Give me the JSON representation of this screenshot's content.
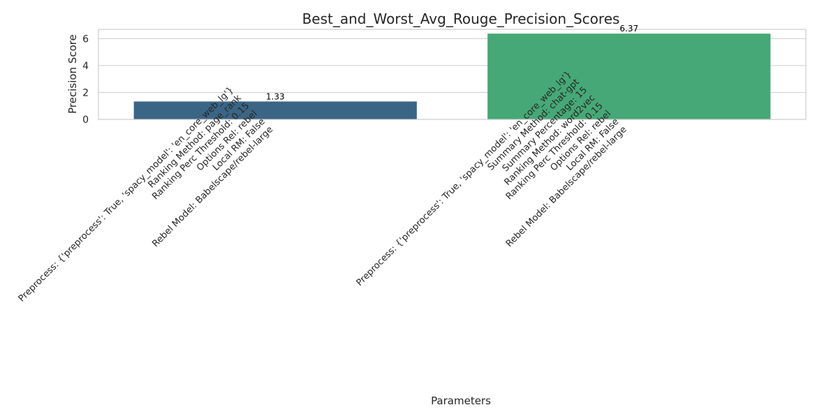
{
  "chart_data": {
    "type": "bar",
    "title": "Best_and_Worst_Avg_Rouge_Precision_Scores",
    "xlabel": "Parameters",
    "ylabel": "Precision Score",
    "ylim": [
      0,
      6.69
    ],
    "yticks": [
      "0",
      "2",
      "4",
      "6"
    ],
    "grid": true,
    "categories": [
      [
        "Preprocess: {'preprocess': True, 'spacy_model': 'en_core_web_lg'}",
        "Ranking Method: page_rank",
        "Ranking Perc Threshold: 0.15",
        "Options Rel: rebel",
        "Local RM: False",
        "Rebel Model: Babelscape/rebel-large"
      ],
      [
        "Preprocess: {'preprocess': True, 'spacy_model': 'en_core_web_lg'}",
        "Summary Method: chat-gpt",
        "Summary Percentage: 15",
        "Ranking Method: word2vec",
        "Ranking Perc Threshold: 0.15",
        "Options Rel: rebel",
        "Local RM: False",
        "Rebel Model: Babelscape/rebel-large"
      ]
    ],
    "values": [
      1.33,
      6.37
    ],
    "value_labels": [
      "1.33",
      "6.37"
    ],
    "colors": [
      "#3b6585",
      "#46a876"
    ]
  }
}
